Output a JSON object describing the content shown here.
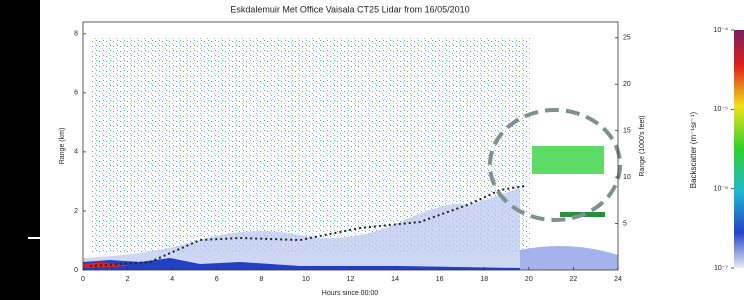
{
  "chart_data": {
    "type": "heatmap",
    "title": "Eskdalemuir Met Office Vaisala CT25 Lidar from 16/05/2010",
    "xlabel": "Hours since 00:00",
    "ylabel": "Range (km)",
    "y2label": "Range (1000's feet)",
    "xlim": [
      0,
      24
    ],
    "xticks": [
      0,
      2,
      4,
      6,
      8,
      10,
      12,
      14,
      16,
      18,
      20,
      22,
      24
    ],
    "ylim": [
      0,
      8.4
    ],
    "yticks": [
      0,
      2,
      4,
      6,
      8
    ],
    "y2lim": [
      0,
      26.7
    ],
    "y2ticks": [
      5,
      10,
      15,
      20,
      25
    ],
    "grid": false,
    "colorbar": {
      "label": "Backscatter (m⁻¹sr⁻¹)",
      "log": true,
      "lim": [
        1e-07,
        0.0001
      ],
      "ticks": [
        {
          "value": 0.0001,
          "label": "10⁻⁴"
        },
        {
          "value": 1e-05,
          "label": "10⁻⁵"
        },
        {
          "value": 1e-06,
          "label": "10⁻⁶"
        },
        {
          "value": 1e-07,
          "label": "10⁻⁷"
        }
      ]
    }
  }
}
